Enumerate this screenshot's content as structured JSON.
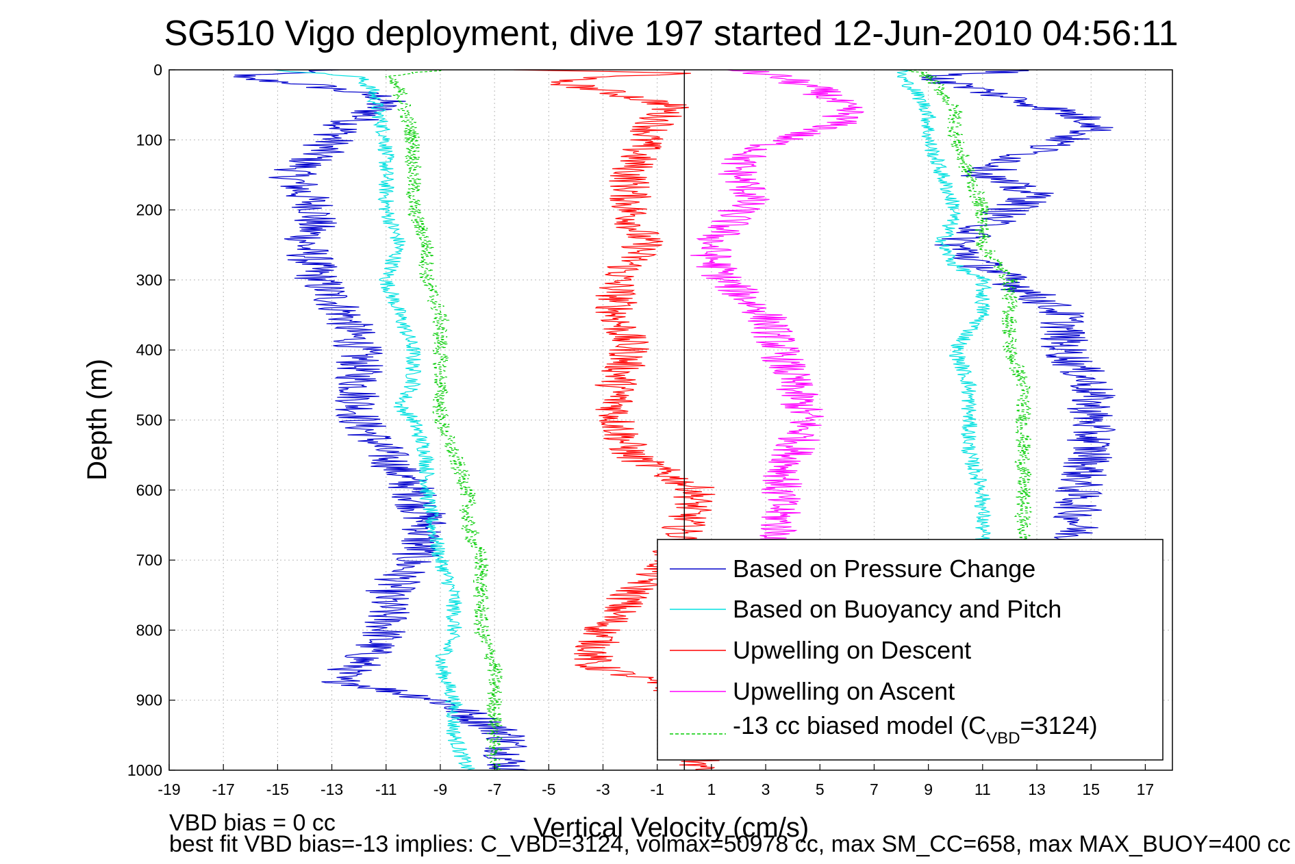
{
  "chart_data": {
    "type": "line",
    "title": "SG510 Vigo deployment, dive 197 started 12-Jun-2010 04:56:11",
    "xlabel": "Vertical Velocity (cm/s)",
    "ylabel": "Depth (m)",
    "xlim": [
      -19,
      18
    ],
    "ylim": [
      0,
      1000
    ],
    "y_reversed": true,
    "grid": true,
    "xticks": [
      -19,
      -17,
      -15,
      -13,
      -11,
      -9,
      -7,
      -5,
      -3,
      -1,
      1,
      3,
      5,
      7,
      9,
      11,
      13,
      15,
      17
    ],
    "yticks": [
      0,
      100,
      200,
      300,
      400,
      500,
      600,
      700,
      800,
      900,
      1000
    ],
    "legend_position": "bottom-right",
    "series": [
      {
        "name": "Based on Pressure Change",
        "color": "#0000cc",
        "depth": [
          0,
          10,
          20,
          40,
          60,
          80,
          100,
          120,
          150,
          180,
          200,
          250,
          300,
          350,
          400,
          450,
          500,
          550,
          600,
          650,
          700,
          750,
          800,
          850,
          870,
          900,
          950,
          1000
        ],
        "velocity": [
          -13,
          -17,
          -14,
          -11,
          -11.5,
          -12.5,
          -13,
          -13.5,
          -14.5,
          -14,
          -13.5,
          -14,
          -13.5,
          -12.5,
          -12,
          -12,
          -12,
          -11,
          -10,
          -9.5,
          -10,
          -11,
          -11,
          -12,
          -13,
          -9,
          -6.5,
          -6.5
        ],
        "noise": 0.9
      },
      {
        "name": "Based on Buoyancy and Pitch",
        "color": "#00e0e0",
        "depth": [
          0,
          10,
          30,
          100,
          150,
          200,
          250,
          300,
          350,
          400,
          450,
          480,
          500,
          550,
          600,
          650,
          700,
          750,
          800,
          850,
          900,
          950,
          1000
        ],
        "velocity": [
          -15,
          -12,
          -11.5,
          -11,
          -11,
          -11,
          -10.5,
          -11,
          -10.5,
          -10,
          -10,
          -10.5,
          -10,
          -9.5,
          -9.5,
          -9.3,
          -9,
          -8.5,
          -8.5,
          -9,
          -8.5,
          -8.5,
          -8
        ],
        "noise": 0.3
      },
      {
        "name": "Upwelling on Descent",
        "color": "#ff0000",
        "depth": [
          0,
          5,
          15,
          30,
          50,
          100,
          150,
          200,
          250,
          300,
          350,
          400,
          450,
          500,
          550,
          580,
          600,
          620,
          650,
          700,
          750,
          800,
          850,
          870,
          900,
          950,
          1000
        ],
        "velocity": [
          -6,
          0,
          -5,
          -3,
          -0.5,
          -1.5,
          -2,
          -2,
          -1.5,
          -2.5,
          -2.5,
          -2,
          -2.5,
          -2.5,
          -2,
          -0.5,
          0.5,
          0.3,
          0,
          -0.5,
          -2,
          -3,
          -3.5,
          -1.5,
          0.5,
          0.5,
          0.5
        ],
        "noise": 0.8
      },
      {
        "name": "Upwelling on Ascent",
        "color": "#ff00ff",
        "depth": [
          0,
          10,
          30,
          60,
          80,
          100,
          130,
          150,
          180,
          200,
          250,
          270,
          300,
          350,
          400,
          450,
          500,
          550,
          600,
          650,
          700
        ],
        "velocity": [
          2,
          3.5,
          5,
          6,
          5.5,
          3.5,
          2,
          2,
          2.5,
          2,
          1,
          1,
          1.5,
          3,
          3.5,
          4,
          4.5,
          4,
          3.5,
          3.5,
          3.5
        ],
        "noise": 0.8
      },
      {
        "name": "-13 cc biased model (C",
        "name_sub": "VBD",
        "name_suffix": "=3124)",
        "color": "#00cc00",
        "dashed": true,
        "depth": [
          0,
          10,
          30,
          100,
          150,
          200,
          250,
          300,
          350,
          400,
          450,
          500,
          550,
          600,
          650,
          700,
          750,
          800,
          850,
          900,
          950,
          1000
        ],
        "velocity": [
          -9,
          -11,
          -10.5,
          -10,
          -10,
          -10,
          -9.5,
          -9.5,
          -9,
          -9,
          -9,
          -9,
          -8.5,
          -8,
          -8,
          -7.5,
          -7.5,
          -7.5,
          -7,
          -7,
          -7,
          -7
        ],
        "noise": 0.3
      }
    ],
    "mirror_series": [
      {
        "color": "#0000cc",
        "depth": [
          0,
          10,
          30,
          60,
          80,
          100,
          130,
          150,
          180,
          200,
          250,
          280,
          300,
          350,
          400,
          450,
          500,
          550,
          600,
          650,
          700
        ],
        "velocity": [
          13,
          9,
          11,
          14,
          15.5,
          14,
          12,
          11,
          13,
          12,
          10,
          11,
          12,
          14,
          14,
          15,
          15,
          15,
          14.5,
          14.5,
          14
        ],
        "noise": 0.9
      },
      {
        "color": "#00e0e0",
        "depth": [
          0,
          10,
          30,
          60,
          100,
          150,
          200,
          250,
          280,
          300,
          350,
          400,
          450,
          500,
          550,
          600,
          650,
          700
        ],
        "velocity": [
          8,
          8,
          8.5,
          9,
          9,
          9.5,
          10,
          9.5,
          10,
          11,
          11,
          10,
          10.5,
          10.5,
          10.5,
          11,
          11,
          11
        ],
        "noise": 0.3
      },
      {
        "color": "#00cc00",
        "dashed": true,
        "depth": [
          0,
          10,
          30,
          60,
          100,
          150,
          200,
          250,
          300,
          350,
          400,
          450,
          500,
          550,
          600,
          650,
          700
        ],
        "velocity": [
          8.5,
          9,
          9.5,
          10,
          10,
          10.5,
          11,
          11,
          12,
          12,
          12,
          12.5,
          12.5,
          12.5,
          12.5,
          12.5,
          12.5
        ],
        "noise": 0.3
      }
    ],
    "footer": {
      "line1": "VBD bias = 0 cc",
      "line2": "best fit VBD bias=-13 implies: C_VBD=3124, volmax=50978 cc, max SM_CC=658, max MAX_BUOY=400 cc"
    }
  }
}
